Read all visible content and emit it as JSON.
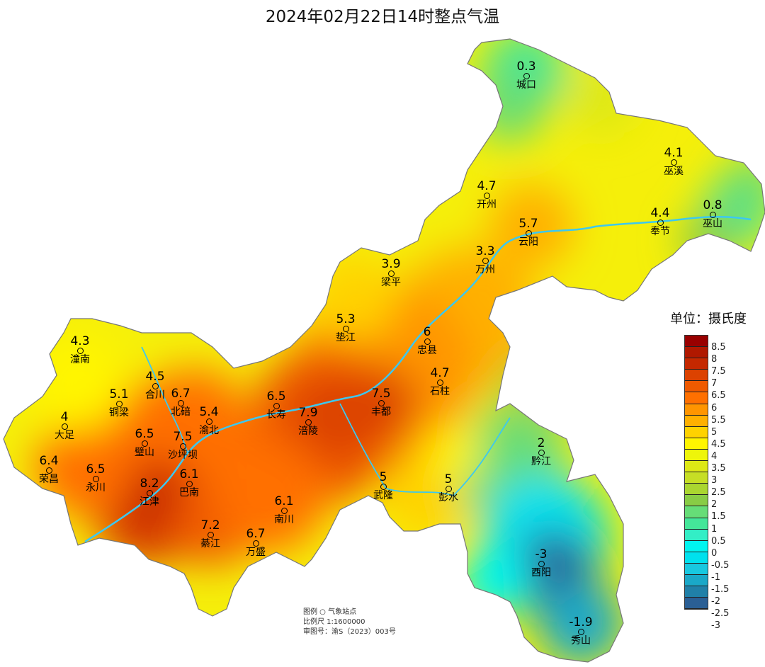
{
  "title": "2024年02月22日14时整点气温",
  "legend": {
    "unit_label": "单位：摄氏度",
    "colors": [
      "#990000",
      "#b01800",
      "#c52800",
      "#dc4200",
      "#ef5a00",
      "#ff7000",
      "#ff9500",
      "#ffb000",
      "#ffd200",
      "#fff500",
      "#eef50a",
      "#dde815",
      "#c6de25",
      "#aad630",
      "#88cc45",
      "#66dd77",
      "#44e699",
      "#33eec6",
      "#00f5f0",
      "#00e1ee",
      "#18c8e0",
      "#1aa8c8",
      "#2080a8",
      "#2a5f95"
    ],
    "labels": [
      "8.5",
      "8",
      "7.5",
      "7",
      "6.5",
      "6",
      "5.5",
      "5",
      "4.5",
      "4",
      "3.5",
      "3",
      "2.5",
      "2",
      "1.5",
      "1",
      "0.5",
      "0",
      "-0.5",
      "-1",
      "-1.5",
      "-2",
      "-2.5",
      "-3"
    ]
  },
  "stations": [
    {
      "name": "城口",
      "value": "0.3"
    },
    {
      "name": "巫溪",
      "value": "4.1"
    },
    {
      "name": "开州",
      "value": "4.7"
    },
    {
      "name": "云阳",
      "value": "5.7"
    },
    {
      "name": "奉节",
      "value": "4.4"
    },
    {
      "name": "巫山",
      "value": "0.8"
    },
    {
      "name": "梁平",
      "value": "3.9"
    },
    {
      "name": "万州",
      "value": "3.3"
    },
    {
      "name": "垫江",
      "value": "5.3"
    },
    {
      "name": "忠县",
      "value": "6"
    },
    {
      "name": "潼南",
      "value": "4.3"
    },
    {
      "name": "合川",
      "value": "4.5"
    },
    {
      "name": "铜梁",
      "value": "5.1"
    },
    {
      "name": "北碚",
      "value": "6.7"
    },
    {
      "name": "渝北",
      "value": "5.4"
    },
    {
      "name": "长寿",
      "value": "6.5"
    },
    {
      "name": "涪陵",
      "value": "7.9"
    },
    {
      "name": "丰都",
      "value": "7.5"
    },
    {
      "name": "石柱",
      "value": "4.7"
    },
    {
      "name": "大足",
      "value": "4"
    },
    {
      "name": "璧山",
      "value": "6.5"
    },
    {
      "name": "沙坪坝",
      "value": "7.5"
    },
    {
      "name": "荣昌",
      "value": "6.4"
    },
    {
      "name": "永川",
      "value": "6.5"
    },
    {
      "name": "江津",
      "value": "8.2"
    },
    {
      "name": "巴南",
      "value": "6.1"
    },
    {
      "name": "黔江",
      "value": "2"
    },
    {
      "name": "武隆",
      "value": "5"
    },
    {
      "name": "彭水",
      "value": "5"
    },
    {
      "name": "南川",
      "value": "6.1"
    },
    {
      "name": "綦江",
      "value": "7.2"
    },
    {
      "name": "万盛",
      "value": "6.7"
    },
    {
      "name": "酉阳",
      "value": "-3"
    },
    {
      "name": "秀山",
      "value": "-1.9"
    }
  ],
  "info": {
    "legend_line": "图例  ○ 气象站点",
    "scale_line": "比例尺   1:1600000",
    "approval_line": "审图号：渝S（2023）003号"
  }
}
